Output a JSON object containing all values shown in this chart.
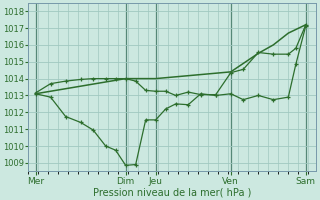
{
  "background_color": "#cce8e0",
  "grid_color": "#a0c8c0",
  "line_color": "#2d6e2d",
  "vline_color": "#558877",
  "xlabel": "Pression niveau de la mer( hPa )",
  "ylim": [
    1008.5,
    1018.5
  ],
  "yticks": [
    1009,
    1010,
    1011,
    1012,
    1013,
    1014,
    1015,
    1016,
    1017,
    1018
  ],
  "xlim": [
    0,
    11.5
  ],
  "day_labels": [
    "Mer",
    "Dim",
    "Jeu",
    "Ven",
    "Sam"
  ],
  "day_positions": [
    0.3,
    3.9,
    5.1,
    8.1,
    11.1
  ],
  "smooth_x": [
    0.3,
    3.9,
    5.1,
    8.1,
    9.2,
    9.8,
    10.4,
    11.1
  ],
  "smooth_y": [
    1013.1,
    1014.0,
    1014.0,
    1014.4,
    1015.5,
    1016.0,
    1016.7,
    1017.2
  ],
  "line1_x": [
    0.3,
    0.9,
    1.5,
    2.1,
    2.6,
    3.1,
    3.5,
    3.9,
    4.3,
    4.7,
    5.1,
    5.5,
    5.9,
    6.4,
    6.9,
    7.5,
    8.1,
    8.6,
    9.2,
    9.8,
    10.4,
    10.7,
    11.1
  ],
  "line1_y": [
    1013.1,
    1012.9,
    1011.75,
    1011.4,
    1010.95,
    1010.0,
    1009.75,
    1008.85,
    1008.9,
    1011.55,
    1011.55,
    1012.2,
    1012.5,
    1012.45,
    1013.1,
    1013.0,
    1013.1,
    1012.75,
    1013.0,
    1012.75,
    1012.9,
    1014.85,
    1017.15
  ],
  "line2_x": [
    0.3,
    0.9,
    1.5,
    2.1,
    2.6,
    3.1,
    3.5,
    3.9,
    4.3,
    4.7,
    5.1,
    5.5,
    5.9,
    6.4,
    6.9,
    7.5,
    8.1,
    8.6,
    9.2,
    9.8,
    10.4,
    10.7,
    11.1
  ],
  "line2_y": [
    1013.15,
    1013.7,
    1013.85,
    1013.95,
    1014.0,
    1014.0,
    1014.0,
    1014.0,
    1013.85,
    1013.3,
    1013.25,
    1013.25,
    1013.0,
    1013.2,
    1013.05,
    1013.05,
    1014.35,
    1014.55,
    1015.55,
    1015.45,
    1015.45,
    1015.8,
    1017.2
  ]
}
